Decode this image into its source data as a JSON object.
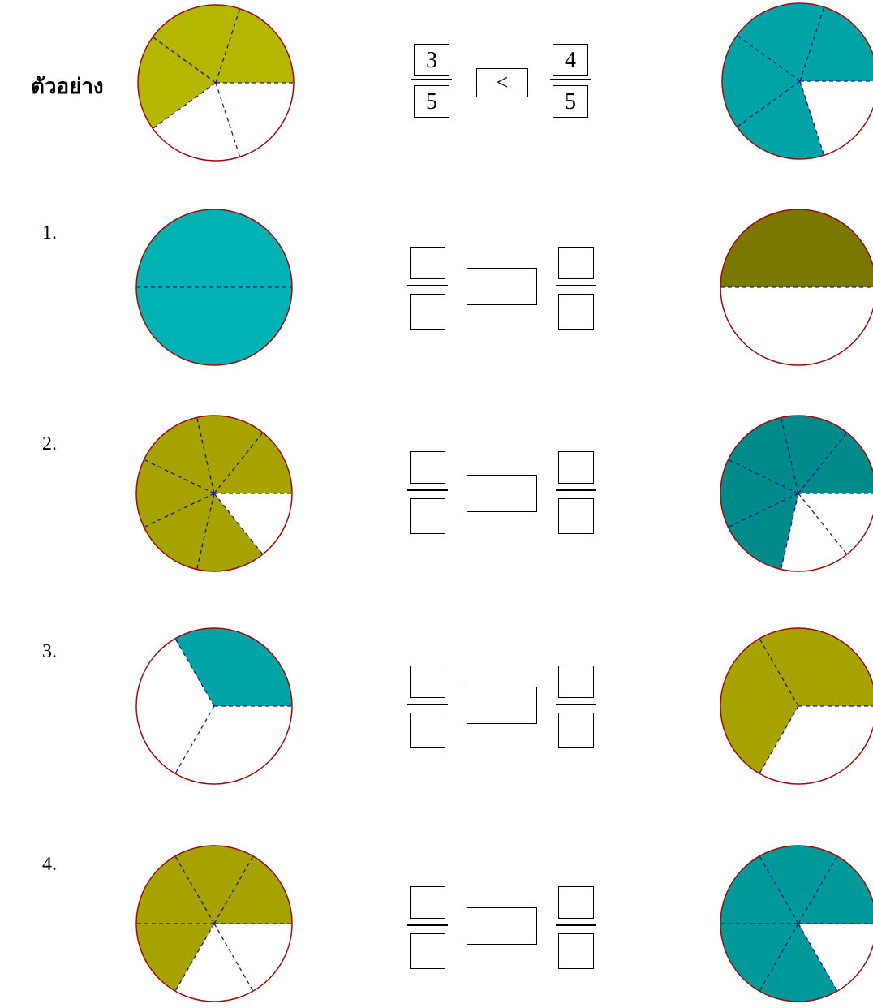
{
  "rows": [
    {
      "label": "ตัวอย่าง",
      "left_pie": {
        "parts": 5,
        "shaded": 3,
        "color": "#b5b600"
      },
      "right_pie": {
        "parts": 5,
        "shaded": 4,
        "color": "#00a3a6"
      },
      "left_fraction": {
        "numerator": "3",
        "denominator": "5"
      },
      "comparison": "<",
      "right_fraction": {
        "numerator": "4",
        "denominator": "5"
      }
    },
    {
      "label": "1.",
      "left_pie": {
        "parts": 2,
        "shaded": 2,
        "color": "#00b2b4"
      },
      "right_pie": {
        "parts": 2,
        "shaded": 1,
        "color": "#7a7800"
      },
      "left_fraction": {
        "numerator": "",
        "denominator": ""
      },
      "comparison": "",
      "right_fraction": {
        "numerator": "",
        "denominator": ""
      }
    },
    {
      "label": "2.",
      "left_pie": {
        "parts": 7,
        "shaded": 6,
        "color": "#a6a300"
      },
      "right_pie": {
        "parts": 7,
        "shaded": 5,
        "color": "#008b8b"
      },
      "left_fraction": {
        "numerator": "",
        "denominator": ""
      },
      "comparison": "",
      "right_fraction": {
        "numerator": "",
        "denominator": ""
      }
    },
    {
      "label": "3.",
      "left_pie": {
        "parts": 3,
        "shaded": 1,
        "color": "#00a3a6"
      },
      "right_pie": {
        "parts": 3,
        "shaded": 2,
        "color": "#a6a300"
      },
      "left_fraction": {
        "numerator": "",
        "denominator": ""
      },
      "comparison": "",
      "right_fraction": {
        "numerator": "",
        "denominator": ""
      }
    },
    {
      "label": "4.",
      "left_pie": {
        "parts": 6,
        "shaded": 4,
        "color": "#a6a300"
      },
      "right_pie": {
        "parts": 6,
        "shaded": 5,
        "color": "#00999a"
      },
      "left_fraction": {
        "numerator": "",
        "denominator": ""
      },
      "comparison": "",
      "right_fraction": {
        "numerator": "",
        "denominator": ""
      }
    }
  ],
  "colors": {
    "outline": "#9b0d0d",
    "divider": "#1a1a9a"
  }
}
